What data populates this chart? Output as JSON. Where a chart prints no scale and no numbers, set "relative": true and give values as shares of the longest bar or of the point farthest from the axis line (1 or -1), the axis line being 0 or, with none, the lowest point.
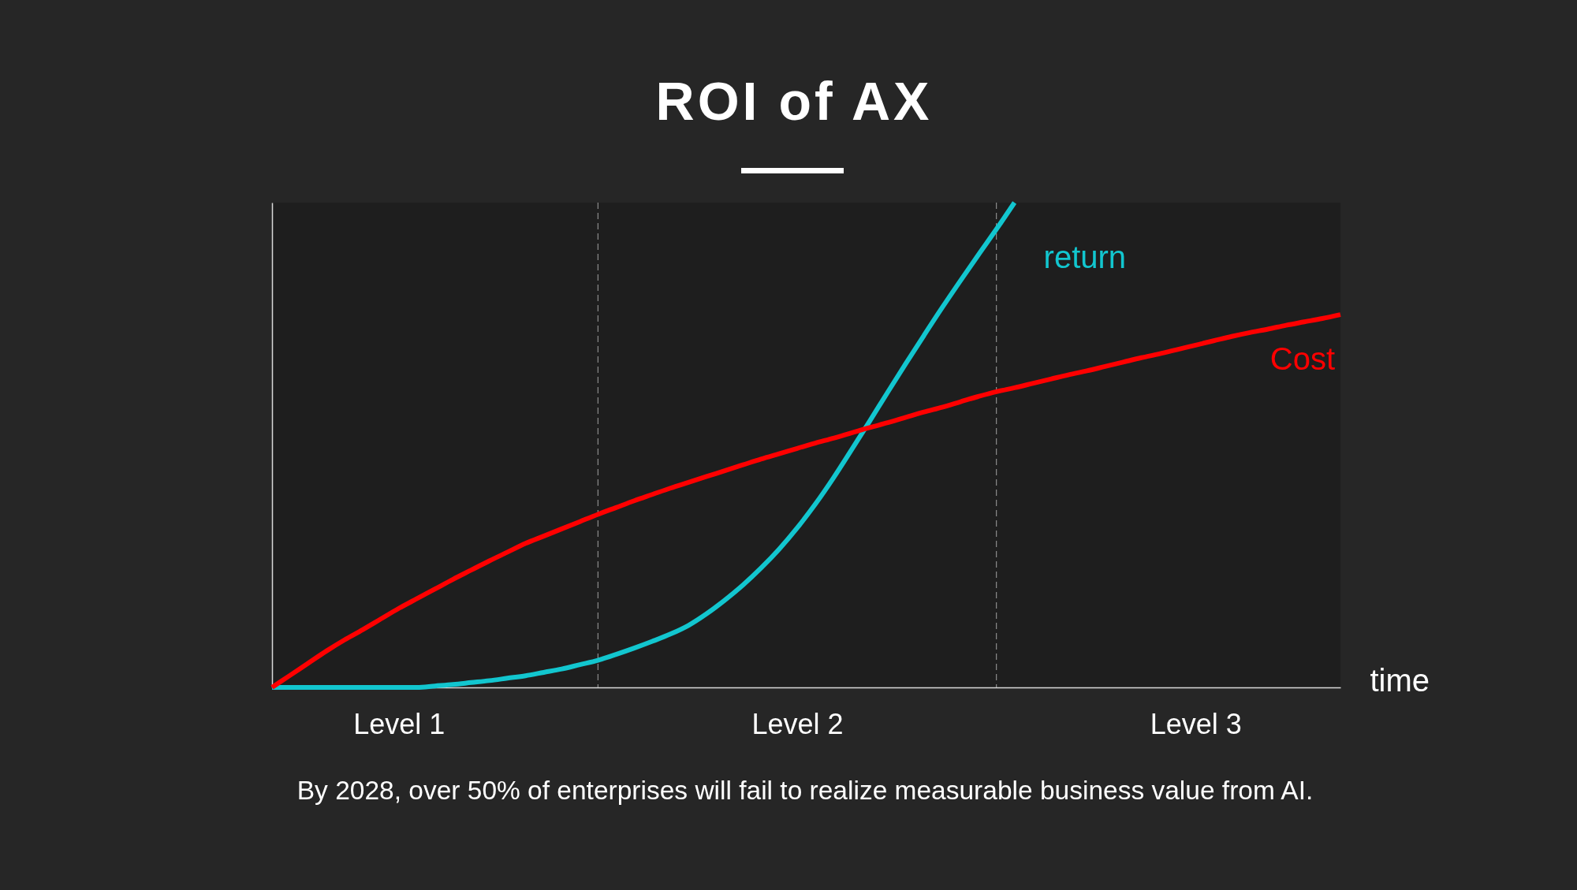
{
  "chart_data": {
    "type": "line",
    "title": "ROI of AX",
    "xlabel": "time",
    "relative": true,
    "categories": [
      null,
      null,
      null,
      null,
      null,
      null,
      null,
      "Level 1",
      null,
      null,
      null,
      null,
      null,
      null,
      null,
      null,
      null,
      null,
      null,
      null,
      null,
      null,
      null,
      null,
      null,
      null,
      null,
      null,
      null,
      "Level 2",
      null,
      null,
      null,
      null,
      null,
      null,
      null,
      null,
      null,
      null,
      null,
      null,
      null,
      null,
      null,
      null,
      null,
      null,
      null,
      null,
      null,
      "Level 3",
      null,
      null,
      null,
      null,
      null,
      null,
      null,
      null
    ],
    "series": [
      {
        "name": "return",
        "color": "#12c6cf",
        "values": [
          0,
          0,
          0,
          0,
          0,
          0,
          0,
          0,
          0,
          0.003,
          0.006,
          0.01,
          0.014,
          0.019,
          0.024,
          0.031,
          0.038,
          0.047,
          0.056,
          0.068,
          0.081,
          0.095,
          0.11,
          0.128,
          0.152,
          0.18,
          0.211,
          0.246,
          0.285,
          0.329,
          0.378,
          0.432,
          0.49,
          0.549,
          0.609,
          0.668,
          0.726,
          0.783,
          0.838,
          0.892,
          0.945,
          1,
          null,
          null,
          null,
          null,
          null,
          null,
          null,
          null,
          null,
          null,
          null,
          null,
          null,
          null,
          null,
          null,
          null,
          null
        ]
      },
      {
        "name": "Cost",
        "color": "#ff0000",
        "values": [
          0,
          0.025,
          0.05,
          0.075,
          0.098,
          0.119,
          0.141,
          0.163,
          0.183,
          0.203,
          0.223,
          0.242,
          0.261,
          0.279,
          0.297,
          0.312,
          0.327,
          0.342,
          0.357,
          0.371,
          0.385,
          0.398,
          0.411,
          0.423,
          0.435,
          0.447,
          0.459,
          0.471,
          0.482,
          0.493,
          0.504,
          0.514,
          0.525,
          0.536,
          0.546,
          0.557,
          0.568,
          0.578,
          0.589,
          0.6,
          0.61,
          0.618,
          0.627,
          0.636,
          0.645,
          0.653,
          0.662,
          0.671,
          0.68,
          0.688,
          0.697,
          0.706,
          0.715,
          0.724,
          0.732,
          0.739,
          0.747,
          0.754,
          0.761,
          0.769
        ]
      }
    ],
    "annotations": [
      "By 2028, over 50% of enterprises will fail to realize measurable business value from AI."
    ]
  }
}
